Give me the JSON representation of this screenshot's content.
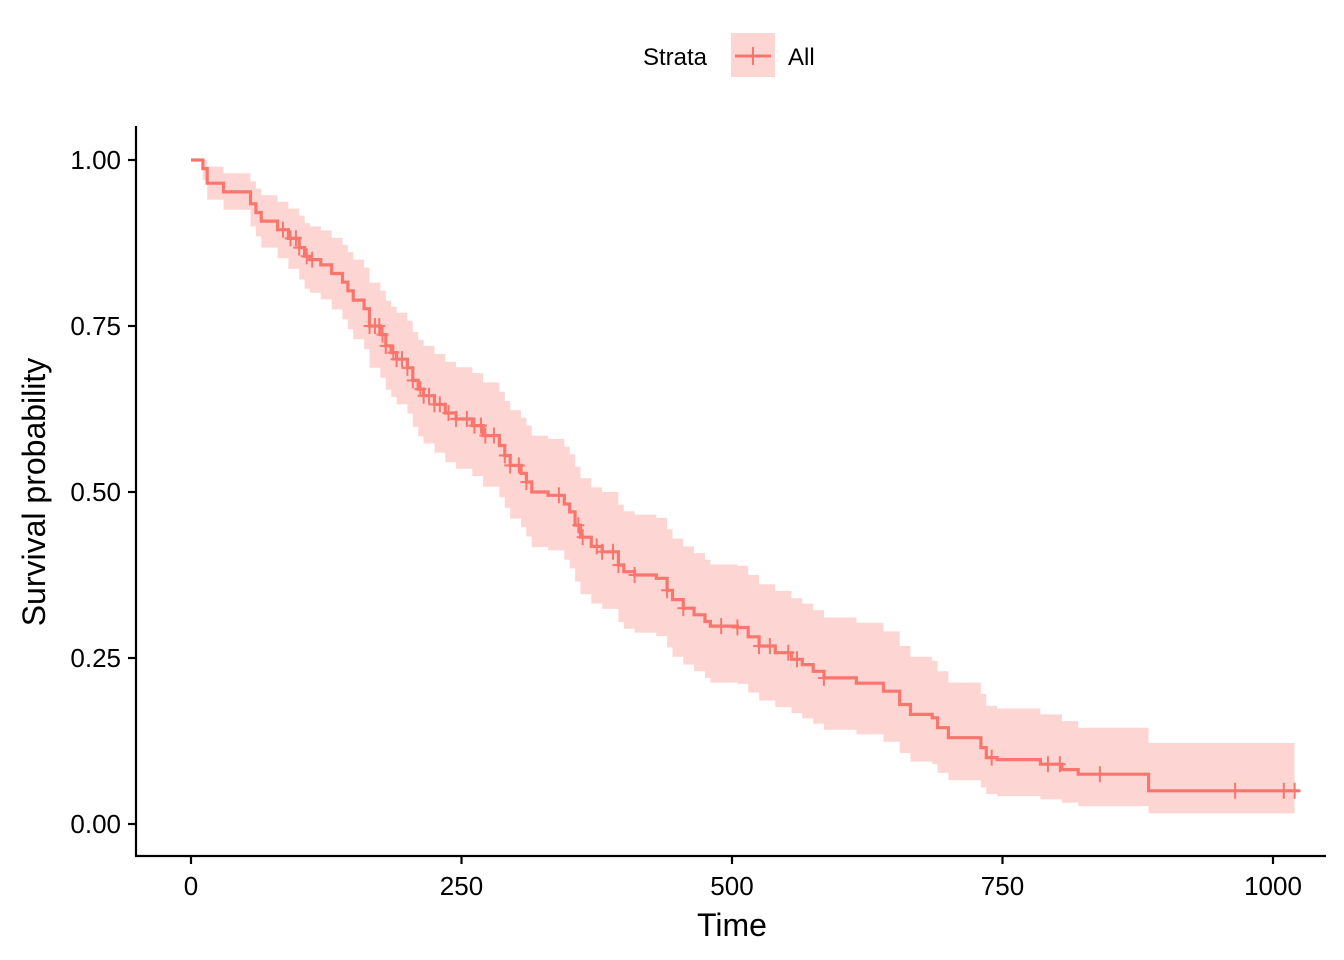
{
  "chart_data": {
    "type": "line",
    "subtype": "kaplan-meier survival curve with confidence band",
    "xlabel": "Time",
    "ylabel": "Survival probability",
    "xlim": [
      0,
      1020
    ],
    "ylim": [
      0,
      1
    ],
    "x_ticks": [
      0,
      250,
      500,
      750,
      1000
    ],
    "x_tick_labels": [
      "0",
      "250",
      "500",
      "750",
      "1000"
    ],
    "y_ticks": [
      0,
      0.25,
      0.5,
      0.75,
      1.0
    ],
    "y_tick_labels": [
      "0.00",
      "0.25",
      "0.50",
      "0.75",
      "1.00"
    ],
    "grid": false,
    "legend": {
      "position": "top",
      "title": "Strata",
      "entries": [
        {
          "label": "All",
          "color": "#F8766D"
        }
      ]
    },
    "series": [
      {
        "name": "All",
        "color": "#F8766D",
        "band_color": "#F8766D",
        "step_points": [
          [
            0,
            1.0
          ],
          [
            11,
            0.987
          ],
          [
            15,
            0.965
          ],
          [
            30,
            0.952
          ],
          [
            55,
            0.934
          ],
          [
            60,
            0.921
          ],
          [
            65,
            0.908
          ],
          [
            80,
            0.895
          ],
          [
            90,
            0.882
          ],
          [
            100,
            0.868
          ],
          [
            105,
            0.855
          ],
          [
            110,
            0.85
          ],
          [
            120,
            0.842
          ],
          [
            130,
            0.829
          ],
          [
            140,
            0.816
          ],
          [
            145,
            0.803
          ],
          [
            150,
            0.789
          ],
          [
            160,
            0.776
          ],
          [
            165,
            0.75
          ],
          [
            175,
            0.737
          ],
          [
            180,
            0.72
          ],
          [
            185,
            0.71
          ],
          [
            190,
            0.7
          ],
          [
            200,
            0.687
          ],
          [
            205,
            0.668
          ],
          [
            210,
            0.655
          ],
          [
            215,
            0.645
          ],
          [
            225,
            0.632
          ],
          [
            235,
            0.619
          ],
          [
            245,
            0.61
          ],
          [
            260,
            0.6
          ],
          [
            270,
            0.585
          ],
          [
            285,
            0.57
          ],
          [
            290,
            0.555
          ],
          [
            295,
            0.54
          ],
          [
            305,
            0.528
          ],
          [
            310,
            0.515
          ],
          [
            315,
            0.5
          ],
          [
            330,
            0.495
          ],
          [
            345,
            0.482
          ],
          [
            350,
            0.47
          ],
          [
            355,
            0.45
          ],
          [
            360,
            0.432
          ],
          [
            370,
            0.418
          ],
          [
            380,
            0.41
          ],
          [
            395,
            0.39
          ],
          [
            400,
            0.38
          ],
          [
            410,
            0.375
          ],
          [
            430,
            0.37
          ],
          [
            440,
            0.352
          ],
          [
            445,
            0.338
          ],
          [
            455,
            0.325
          ],
          [
            465,
            0.315
          ],
          [
            475,
            0.305
          ],
          [
            480,
            0.298
          ],
          [
            505,
            0.296
          ],
          [
            515,
            0.282
          ],
          [
            525,
            0.268
          ],
          [
            540,
            0.258
          ],
          [
            555,
            0.248
          ],
          [
            565,
            0.24
          ],
          [
            575,
            0.23
          ],
          [
            585,
            0.22
          ],
          [
            615,
            0.212
          ],
          [
            640,
            0.2
          ],
          [
            655,
            0.18
          ],
          [
            665,
            0.165
          ],
          [
            685,
            0.16
          ],
          [
            690,
            0.145
          ],
          [
            700,
            0.13
          ],
          [
            730,
            0.115
          ],
          [
            735,
            0.1
          ],
          [
            745,
            0.097
          ],
          [
            785,
            0.09
          ],
          [
            805,
            0.082
          ],
          [
            820,
            0.075
          ],
          [
            885,
            0.05
          ],
          [
            1025,
            0.05
          ]
        ],
        "ci_lower": [
          [
            0,
            1.0
          ],
          [
            11,
            0.97
          ],
          [
            15,
            0.94
          ],
          [
            30,
            0.925
          ],
          [
            55,
            0.9
          ],
          [
            60,
            0.885
          ],
          [
            65,
            0.868
          ],
          [
            80,
            0.852
          ],
          [
            90,
            0.836
          ],
          [
            100,
            0.82
          ],
          [
            105,
            0.806
          ],
          [
            110,
            0.8
          ],
          [
            120,
            0.79
          ],
          [
            130,
            0.775
          ],
          [
            140,
            0.76
          ],
          [
            145,
            0.745
          ],
          [
            150,
            0.73
          ],
          [
            160,
            0.715
          ],
          [
            165,
            0.687
          ],
          [
            175,
            0.672
          ],
          [
            180,
            0.654
          ],
          [
            185,
            0.643
          ],
          [
            190,
            0.632
          ],
          [
            200,
            0.618
          ],
          [
            205,
            0.598
          ],
          [
            210,
            0.584
          ],
          [
            215,
            0.573
          ],
          [
            225,
            0.559
          ],
          [
            235,
            0.545
          ],
          [
            245,
            0.535
          ],
          [
            260,
            0.524
          ],
          [
            270,
            0.508
          ],
          [
            285,
            0.492
          ],
          [
            290,
            0.476
          ],
          [
            295,
            0.46
          ],
          [
            305,
            0.447
          ],
          [
            310,
            0.433
          ],
          [
            315,
            0.417
          ],
          [
            330,
            0.412
          ],
          [
            345,
            0.398
          ],
          [
            350,
            0.385
          ],
          [
            355,
            0.365
          ],
          [
            360,
            0.346
          ],
          [
            370,
            0.332
          ],
          [
            380,
            0.324
          ],
          [
            395,
            0.304
          ],
          [
            400,
            0.294
          ],
          [
            410,
            0.288
          ],
          [
            430,
            0.283
          ],
          [
            440,
            0.266
          ],
          [
            445,
            0.252
          ],
          [
            455,
            0.24
          ],
          [
            465,
            0.23
          ],
          [
            475,
            0.22
          ],
          [
            480,
            0.213
          ],
          [
            505,
            0.211
          ],
          [
            515,
            0.198
          ],
          [
            525,
            0.186
          ],
          [
            540,
            0.176
          ],
          [
            555,
            0.167
          ],
          [
            565,
            0.159
          ],
          [
            575,
            0.151
          ],
          [
            585,
            0.142
          ],
          [
            615,
            0.135
          ],
          [
            640,
            0.124
          ],
          [
            655,
            0.107
          ],
          [
            665,
            0.094
          ],
          [
            685,
            0.09
          ],
          [
            690,
            0.077
          ],
          [
            700,
            0.066
          ],
          [
            730,
            0.055
          ],
          [
            735,
            0.045
          ],
          [
            745,
            0.042
          ],
          [
            785,
            0.037
          ],
          [
            805,
            0.032
          ],
          [
            820,
            0.027
          ],
          [
            885,
            0.016
          ],
          [
            1020,
            0.016
          ]
        ],
        "ci_upper": [
          [
            0,
            1.0
          ],
          [
            11,
            1.0
          ],
          [
            15,
            0.99
          ],
          [
            30,
            0.98
          ],
          [
            55,
            0.968
          ],
          [
            60,
            0.957
          ],
          [
            65,
            0.947
          ],
          [
            80,
            0.937
          ],
          [
            90,
            0.927
          ],
          [
            100,
            0.916
          ],
          [
            105,
            0.905
          ],
          [
            110,
            0.9
          ],
          [
            120,
            0.894
          ],
          [
            130,
            0.883
          ],
          [
            140,
            0.872
          ],
          [
            145,
            0.861
          ],
          [
            150,
            0.85
          ],
          [
            160,
            0.838
          ],
          [
            165,
            0.815
          ],
          [
            175,
            0.803
          ],
          [
            180,
            0.788
          ],
          [
            185,
            0.779
          ],
          [
            190,
            0.77
          ],
          [
            200,
            0.758
          ],
          [
            205,
            0.741
          ],
          [
            210,
            0.729
          ],
          [
            215,
            0.72
          ],
          [
            225,
            0.708
          ],
          [
            235,
            0.696
          ],
          [
            245,
            0.688
          ],
          [
            260,
            0.679
          ],
          [
            270,
            0.665
          ],
          [
            285,
            0.651
          ],
          [
            290,
            0.637
          ],
          [
            295,
            0.623
          ],
          [
            305,
            0.612
          ],
          [
            310,
            0.6
          ],
          [
            315,
            0.585
          ],
          [
            330,
            0.58
          ],
          [
            345,
            0.568
          ],
          [
            350,
            0.557
          ],
          [
            355,
            0.538
          ],
          [
            360,
            0.521
          ],
          [
            370,
            0.507
          ],
          [
            380,
            0.5
          ],
          [
            395,
            0.481
          ],
          [
            400,
            0.471
          ],
          [
            410,
            0.466
          ],
          [
            430,
            0.461
          ],
          [
            440,
            0.444
          ],
          [
            445,
            0.43
          ],
          [
            455,
            0.418
          ],
          [
            465,
            0.408
          ],
          [
            475,
            0.398
          ],
          [
            480,
            0.391
          ],
          [
            505,
            0.389
          ],
          [
            515,
            0.375
          ],
          [
            525,
            0.361
          ],
          [
            540,
            0.351
          ],
          [
            555,
            0.34
          ],
          [
            565,
            0.332
          ],
          [
            575,
            0.322
          ],
          [
            585,
            0.311
          ],
          [
            615,
            0.303
          ],
          [
            640,
            0.29
          ],
          [
            655,
            0.268
          ],
          [
            665,
            0.252
          ],
          [
            685,
            0.246
          ],
          [
            690,
            0.23
          ],
          [
            700,
            0.213
          ],
          [
            730,
            0.196
          ],
          [
            735,
            0.178
          ],
          [
            745,
            0.174
          ],
          [
            785,
            0.165
          ],
          [
            805,
            0.155
          ],
          [
            820,
            0.145
          ],
          [
            885,
            0.122
          ],
          [
            1020,
            0.122
          ]
        ],
        "censor_times": [
          85,
          92,
          97,
          100,
          107,
          112,
          165,
          170,
          174,
          177,
          180,
          187,
          190,
          195,
          200,
          205,
          212,
          215,
          220,
          225,
          230,
          238,
          245,
          255,
          262,
          268,
          272,
          280,
          290,
          295,
          303,
          310,
          340,
          358,
          362,
          375,
          380,
          390,
          395,
          410,
          440,
          455,
          490,
          505,
          525,
          535,
          552,
          560,
          585,
          740,
          792,
          803,
          840,
          965,
          1010,
          1020
        ]
      }
    ]
  }
}
